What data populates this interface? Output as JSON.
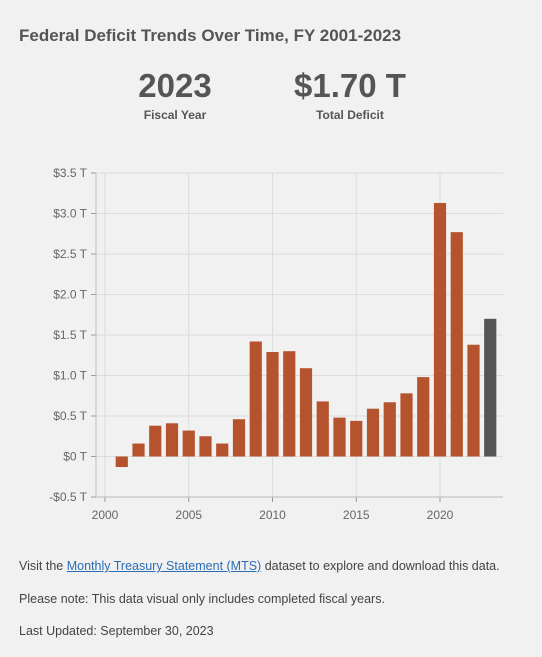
{
  "title": "Federal Deficit Trends Over Time, FY 2001-2023",
  "stats": {
    "year_value": "2023",
    "year_label": "Fiscal Year",
    "deficit_value": "$1.70 T",
    "deficit_label": "Total Deficit"
  },
  "footer": {
    "visit_prefix": "Visit the ",
    "link_text": "Monthly Treasury Statement (MTS)",
    "visit_suffix": " dataset to explore and download this data.",
    "note": "Please note: This data visual only includes completed fiscal years.",
    "updated": "Last Updated: September 30, 2023"
  },
  "colors": {
    "bar": "#b5532e",
    "highlight": "#555555",
    "grid": "#dcdcdc"
  },
  "chart_data": {
    "type": "bar",
    "title": "Federal Deficit Trends Over Time, FY 2001-2023",
    "xlabel": "",
    "ylabel": "",
    "x": [
      2001,
      2002,
      2003,
      2004,
      2005,
      2006,
      2007,
      2008,
      2009,
      2010,
      2011,
      2012,
      2013,
      2014,
      2015,
      2016,
      2017,
      2018,
      2019,
      2020,
      2021,
      2022,
      2023
    ],
    "values": [
      -0.13,
      0.16,
      0.38,
      0.41,
      0.32,
      0.25,
      0.16,
      0.46,
      1.42,
      1.29,
      1.3,
      1.09,
      0.68,
      0.48,
      0.44,
      0.59,
      0.67,
      0.78,
      0.98,
      3.13,
      2.77,
      1.38,
      1.7
    ],
    "unit": "trillion USD",
    "highlight_x": 2023,
    "ylim": [
      -0.5,
      3.5
    ],
    "yticks": [
      -0.5,
      0,
      0.5,
      1.0,
      1.5,
      2.0,
      2.5,
      3.0,
      3.5
    ],
    "ytick_labels": [
      "-$0.5 T",
      "$0 T",
      "$0.5 T",
      "$1.0 T",
      "$1.5 T",
      "$2.0 T",
      "$2.5 T",
      "$3.0 T",
      "$3.5 T"
    ],
    "xlim": [
      2000,
      2024
    ],
    "xticks": [
      2000,
      2005,
      2010,
      2015,
      2020
    ],
    "xtick_labels": [
      "2000",
      "2005",
      "2010",
      "2015",
      "2020"
    ],
    "grid": true
  }
}
